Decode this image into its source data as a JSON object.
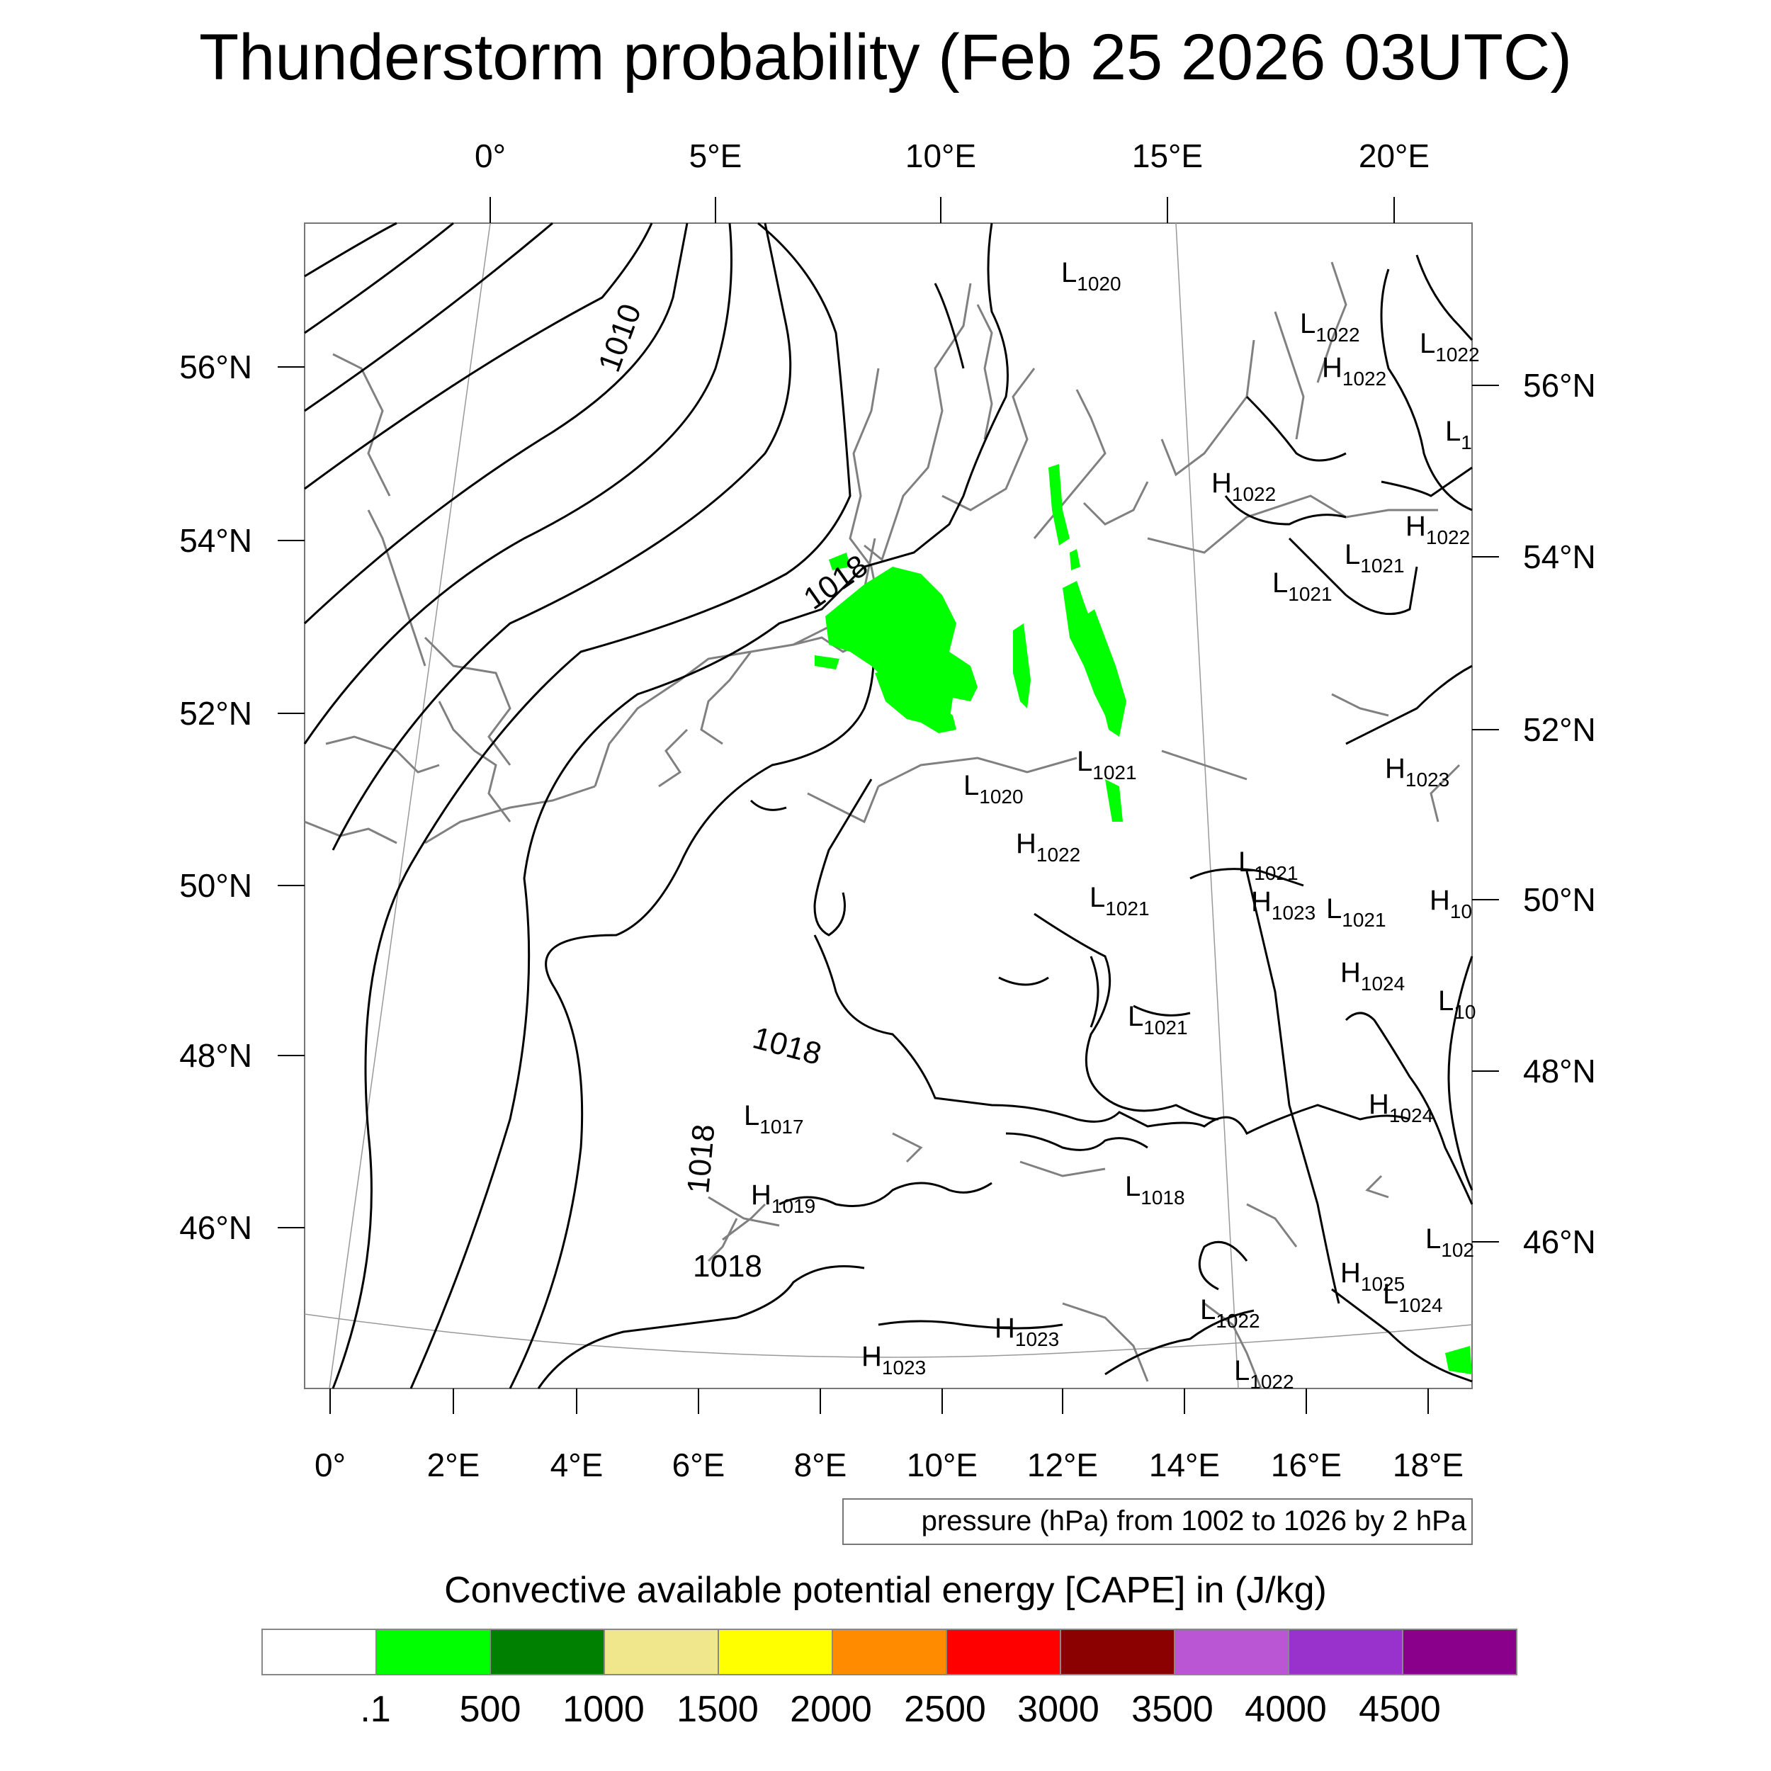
{
  "title": "Thunderstorm probability (Feb 25 2026 03UTC)",
  "top_lon_labels": [
    "0°",
    "5°E",
    "10°E",
    "15°E",
    "20°E"
  ],
  "bottom_lon_labels": [
    "0°",
    "2°E",
    "4°E",
    "6°E",
    "8°E",
    "10°E",
    "12°E",
    "14°E",
    "16°E",
    "18°E"
  ],
  "left_lat_labels": [
    "56°N",
    "54°N",
    "52°N",
    "50°N",
    "48°N",
    "46°N"
  ],
  "right_lat_labels": [
    "56°N",
    "54°N",
    "52°N",
    "50°N",
    "48°N",
    "46°N"
  ],
  "contour_labels": [
    "1010",
    "1018",
    "1018",
    "1018",
    "1018"
  ],
  "pressure_centers": [
    {
      "type": "L",
      "value": "1020"
    },
    {
      "type": "L",
      "value": "1022"
    },
    {
      "type": "L",
      "value": "1022"
    },
    {
      "type": "H",
      "value": "1022"
    },
    {
      "type": "L",
      "value": "1"
    },
    {
      "type": "H",
      "value": "1022"
    },
    {
      "type": "H",
      "value": "1022"
    },
    {
      "type": "L",
      "value": "1021"
    },
    {
      "type": "L",
      "value": "1021"
    },
    {
      "type": "L",
      "value": "1021"
    },
    {
      "type": "H",
      "value": "1023"
    },
    {
      "type": "L",
      "value": "1020"
    },
    {
      "type": "H",
      "value": "1022"
    },
    {
      "type": "L",
      "value": "1021"
    },
    {
      "type": "L",
      "value": "1021"
    },
    {
      "type": "H",
      "value": "1023"
    },
    {
      "type": "L",
      "value": "1021"
    },
    {
      "type": "H",
      "value": "10"
    },
    {
      "type": "H",
      "value": "1024"
    },
    {
      "type": "L",
      "value": "10"
    },
    {
      "type": "L",
      "value": "1021"
    },
    {
      "type": "H",
      "value": "1024"
    },
    {
      "type": "L",
      "value": "1017"
    },
    {
      "type": "H",
      "value": "1019"
    },
    {
      "type": "L",
      "value": "1018"
    },
    {
      "type": "L",
      "value": "102"
    },
    {
      "type": "H",
      "value": "1025"
    },
    {
      "type": "L",
      "value": "1024"
    },
    {
      "type": "L",
      "value": "1022"
    },
    {
      "type": "H",
      "value": "1023"
    },
    {
      "type": "H",
      "value": "1023"
    },
    {
      "type": "L",
      "value": "1022"
    }
  ],
  "pressure_note": "pressure (hPa) from 1002 to 1026 by 2 hPa",
  "colorbar": {
    "title": "Convective available potential energy [CAPE] in (J/kg)",
    "colors": [
      "#ffffff",
      "#00ff00",
      "#008000",
      "#f0e68c",
      "#ffff00",
      "#ff8c00",
      "#ff0000",
      "#8b0000",
      "#ba55d3",
      "#9932cc",
      "#8b008b"
    ],
    "labels": [
      ".1",
      "500",
      "1000",
      "1500",
      "2000",
      "2500",
      "3000",
      "3500",
      "4000",
      "4500"
    ]
  },
  "colors": {
    "cape_low": "#00ff00",
    "coastline": "#808080",
    "isobar": "#000000"
  }
}
